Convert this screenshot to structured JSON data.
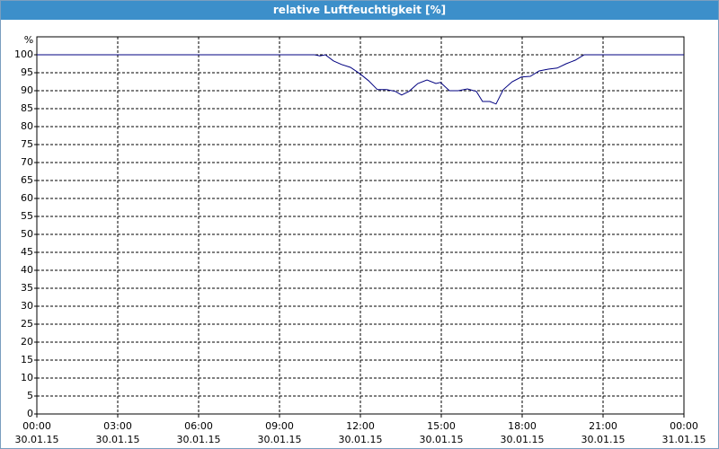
{
  "chart_data": {
    "type": "line",
    "title": "relative Luftfeuchtigkeit [%]",
    "y_unit": "%",
    "x": [
      0,
      10.2,
      10.3,
      10.5,
      10.7,
      11.0,
      11.3,
      11.63,
      11.97,
      12.3,
      12.63,
      12.97,
      13.3,
      13.53,
      13.8,
      14.13,
      14.47,
      14.8,
      14.97,
      15.3,
      15.63,
      15.97,
      16.3,
      16.53,
      16.8,
      17.03,
      17.3,
      17.63,
      17.97,
      18.3,
      18.63,
      18.97,
      19.3,
      19.63,
      19.97,
      20.3,
      24
    ],
    "series": [
      {
        "name": "relative Luftfeuchtigkeit",
        "color": "#000080",
        "values": [
          100,
          100,
          100,
          99.7,
          100,
          98.3,
          97.3,
          96.5,
          94.8,
          92.8,
          90.3,
          90.3,
          89.8,
          88.8,
          89.8,
          92,
          93,
          92,
          92.3,
          90,
          90,
          90.5,
          89.8,
          87,
          87,
          86.3,
          90.3,
          92.5,
          93.8,
          94,
          95.5,
          96,
          96.3,
          97.5,
          98.5,
          100,
          100
        ]
      }
    ],
    "xlim": [
      0,
      24
    ],
    "xticks": [
      {
        "value": 0,
        "label": "00:00"
      },
      {
        "value": 3,
        "label": "03:00"
      },
      {
        "value": 6,
        "label": "06:00"
      },
      {
        "value": 9,
        "label": "09:00"
      },
      {
        "value": 12,
        "label": "12:00"
      },
      {
        "value": 15,
        "label": "15:00"
      },
      {
        "value": 18,
        "label": "18:00"
      },
      {
        "value": 21,
        "label": "21:00"
      },
      {
        "value": 24,
        "label": "00:00"
      }
    ],
    "xtick_dates": [
      "30.01.15",
      "30.01.15",
      "30.01.15",
      "30.01.15",
      "30.01.15",
      "30.01.15",
      "30.01.15",
      "30.01.15",
      "31.01.15"
    ],
    "ylim": [
      0,
      105
    ],
    "yticks": [
      0,
      5,
      10,
      15,
      20,
      25,
      30,
      35,
      40,
      45,
      50,
      55,
      60,
      65,
      70,
      75,
      80,
      85,
      90,
      95,
      100
    ],
    "grid": true
  }
}
